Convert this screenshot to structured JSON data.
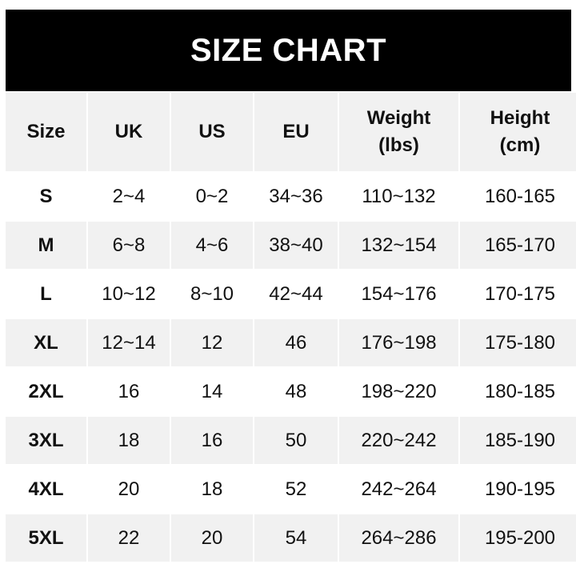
{
  "title": "SIZE CHART",
  "headers": [
    [
      "Size"
    ],
    [
      "UK"
    ],
    [
      "US"
    ],
    [
      "EU"
    ],
    [
      "Weight",
      "(lbs)"
    ],
    [
      "Height",
      "(cm)"
    ]
  ],
  "rows": [
    [
      "S",
      "2~4",
      "0~2",
      "34~36",
      "110~132",
      "160-165"
    ],
    [
      "M",
      "6~8",
      "4~6",
      "38~40",
      "132~154",
      "165-170"
    ],
    [
      "L",
      "10~12",
      "8~10",
      "42~44",
      "154~176",
      "170-175"
    ],
    [
      "XL",
      "12~14",
      "12",
      "46",
      "176~198",
      "175-180"
    ],
    [
      "2XL",
      "16",
      "14",
      "48",
      "198~220",
      "180-185"
    ],
    [
      "3XL",
      "18",
      "16",
      "50",
      "220~242",
      "185-190"
    ],
    [
      "4XL",
      "20",
      "18",
      "52",
      "242~264",
      "190-195"
    ],
    [
      "5XL",
      "22",
      "20",
      "54",
      "264~286",
      "195-200"
    ]
  ],
  "colors": {
    "header_bg": "#000000",
    "stripe": "#f1f1f1"
  }
}
